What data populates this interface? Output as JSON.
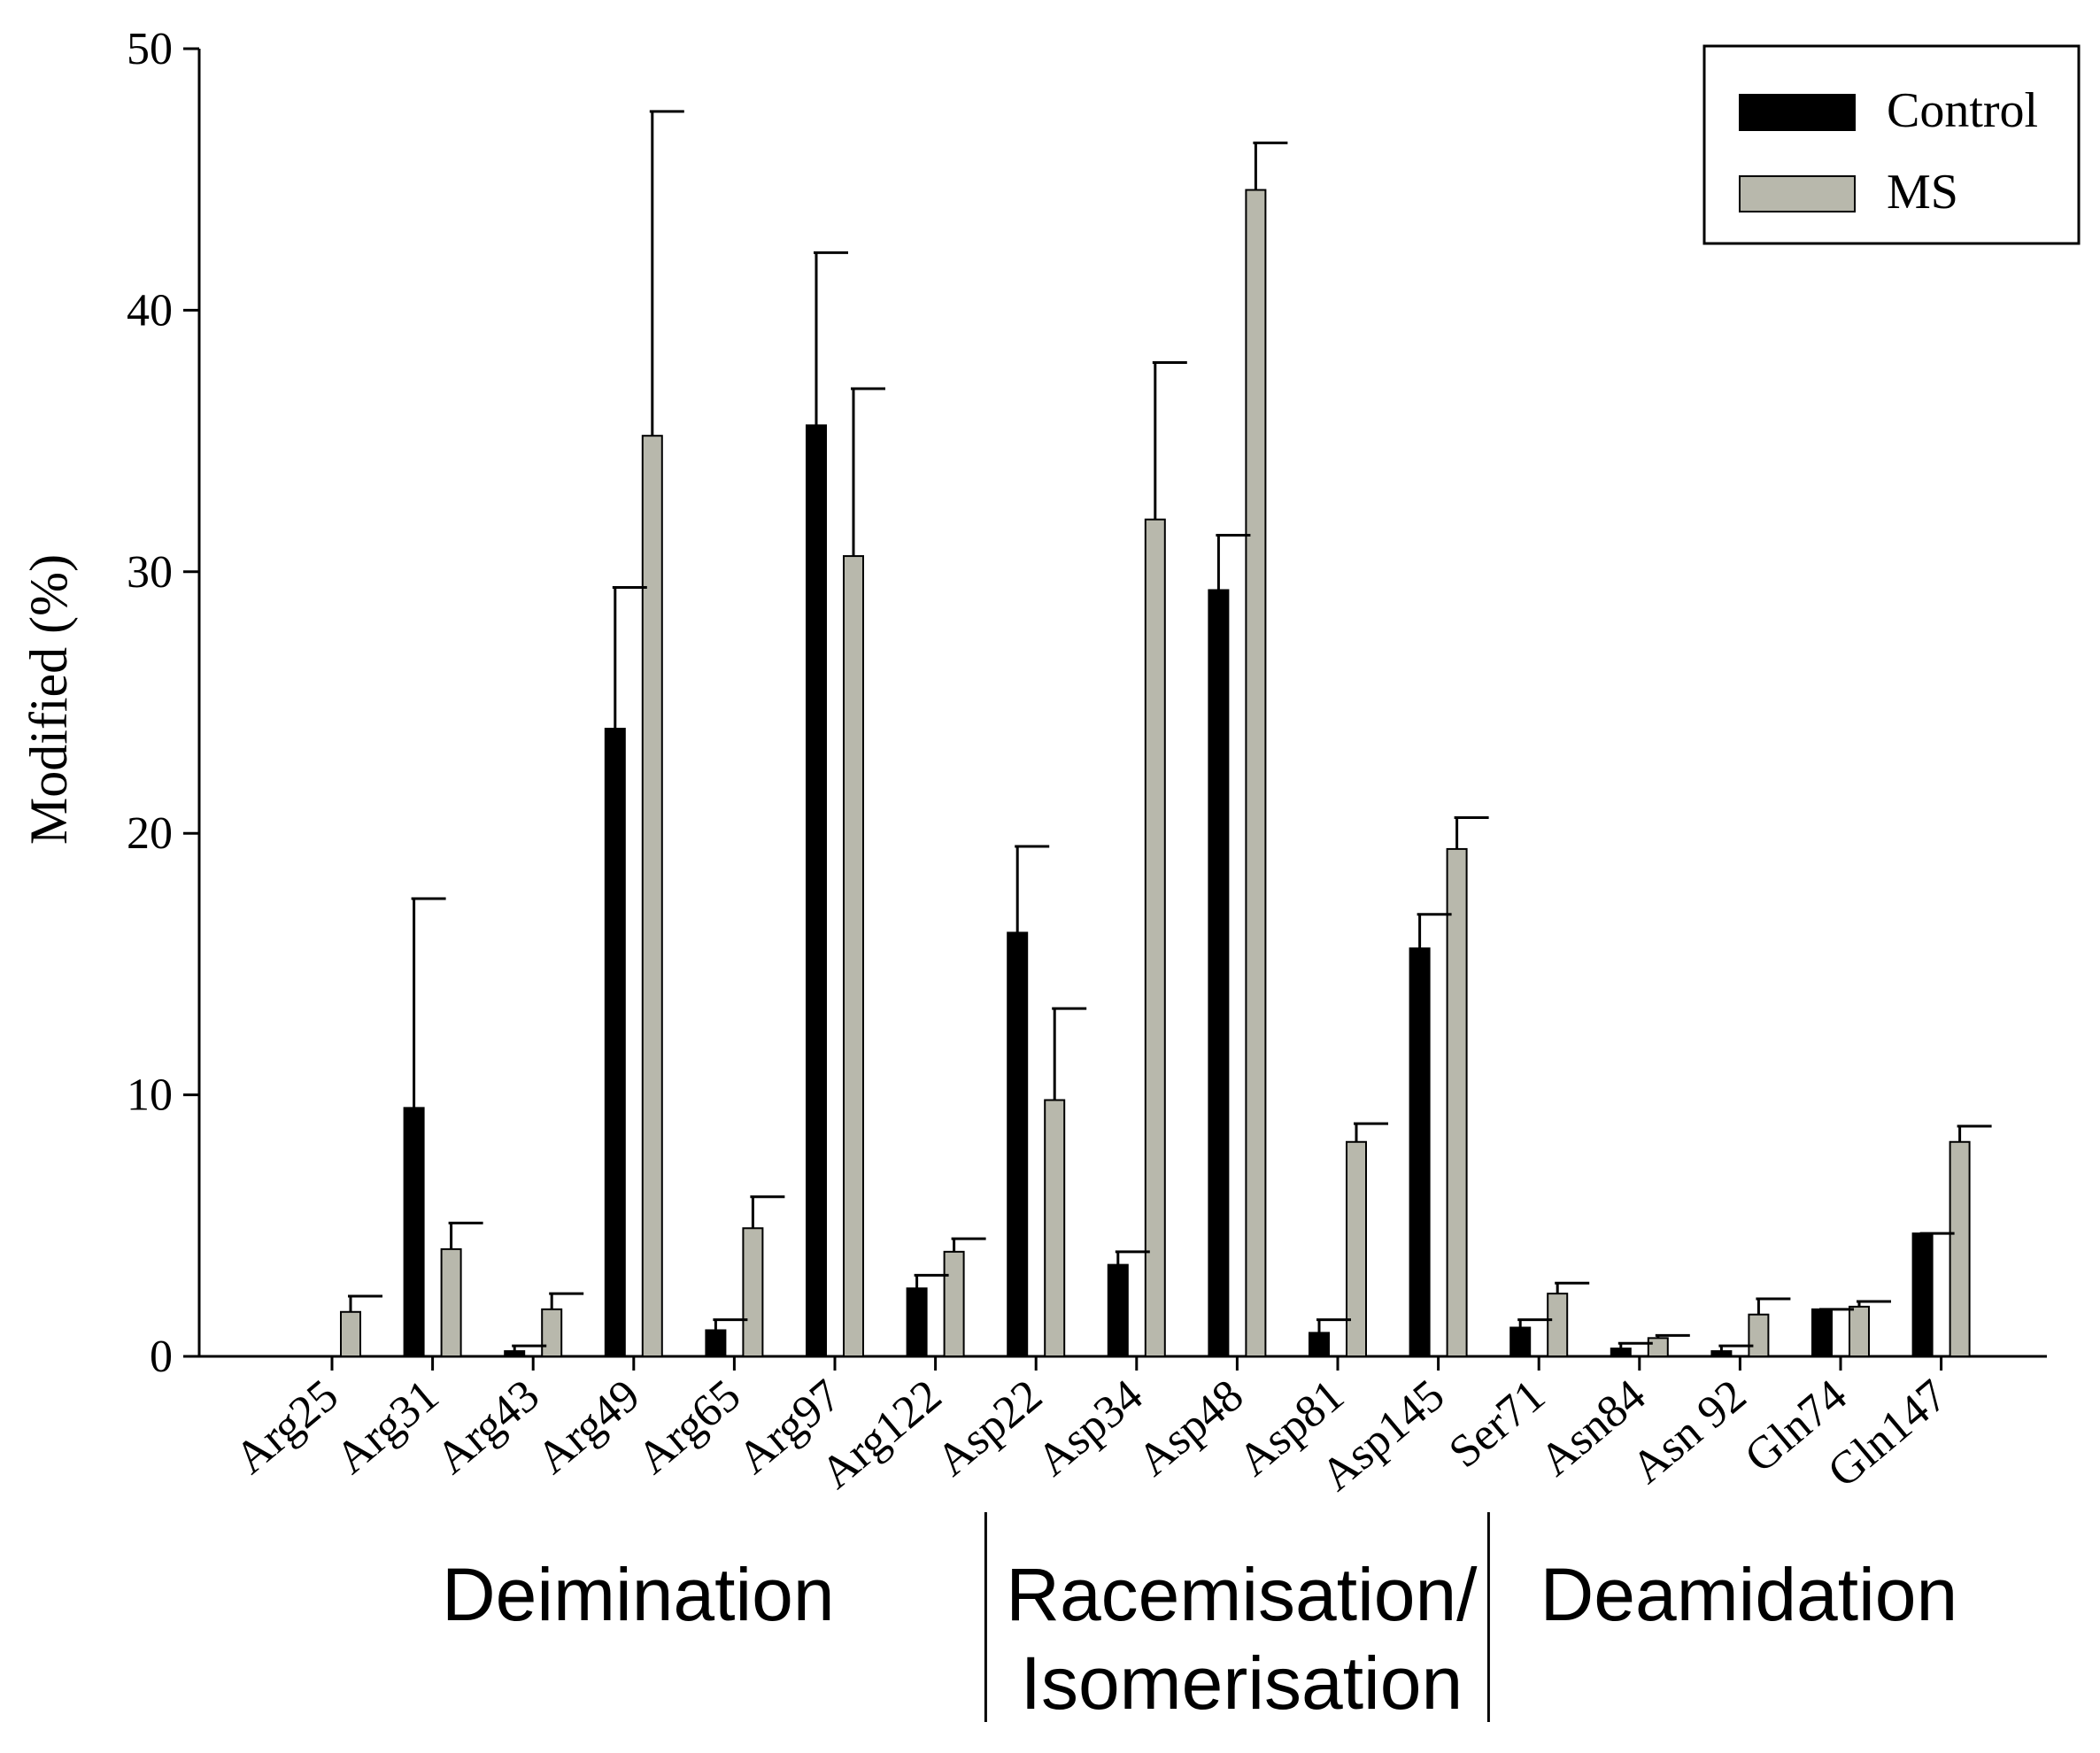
{
  "chart_data": {
    "type": "bar",
    "title": "",
    "xlabel": "",
    "ylabel": "Modified (%)",
    "ylim": [
      0,
      50
    ],
    "yticks": [
      0,
      10,
      20,
      30,
      40,
      50
    ],
    "grid": false,
    "legend_position": "top-right",
    "categories": [
      "Arg25",
      "Arg31",
      "Arg43",
      "Arg49",
      "Arg65",
      "Arg97",
      "Arg122",
      "Asp22",
      "Asp34",
      "Asp48",
      "Asp81",
      "Asp145",
      "Ser71",
      "Asn84",
      "Asn 92",
      "Gln74",
      "Gln147"
    ],
    "series": [
      {
        "name": "Control",
        "color": "#000000",
        "values": [
          0.0,
          9.5,
          0.2,
          24.0,
          1.0,
          35.6,
          2.6,
          16.2,
          3.5,
          29.3,
          0.9,
          15.6,
          1.1,
          0.3,
          0.2,
          1.8,
          4.7
        ],
        "errors": [
          0.0,
          8.0,
          0.2,
          5.4,
          0.4,
          6.6,
          0.5,
          3.3,
          0.5,
          2.1,
          0.5,
          1.3,
          0.3,
          0.2,
          0.2,
          0.0,
          0.0
        ]
      },
      {
        "name": "MS",
        "color": "#b8b8ac",
        "values": [
          1.7,
          4.1,
          1.8,
          35.2,
          4.9,
          30.6,
          4.0,
          9.8,
          32.0,
          44.6,
          8.2,
          19.4,
          2.4,
          0.7,
          1.6,
          1.9,
          8.2
        ],
        "errors": [
          0.6,
          1.0,
          0.6,
          12.4,
          1.2,
          6.4,
          0.5,
          3.5,
          6.0,
          1.8,
          0.7,
          1.2,
          0.4,
          0.1,
          0.6,
          0.2,
          0.6
        ]
      }
    ],
    "groups": [
      {
        "label_lines": [
          "Deimination"
        ],
        "categories": [
          "Arg25",
          "Arg31",
          "Arg43",
          "Arg49",
          "Arg65",
          "Arg97",
          "Arg122"
        ]
      },
      {
        "label_lines": [
          "Racemisation/",
          "Isomerisation"
        ],
        "categories": [
          "Asp22",
          "Asp34",
          "Asp48",
          "Asp81",
          "Asp145"
        ]
      },
      {
        "label_lines": [
          "Deamidation"
        ],
        "categories": [
          "Ser71",
          "Asn84",
          "Asn 92",
          "Gln74",
          "Gln147"
        ]
      }
    ]
  }
}
